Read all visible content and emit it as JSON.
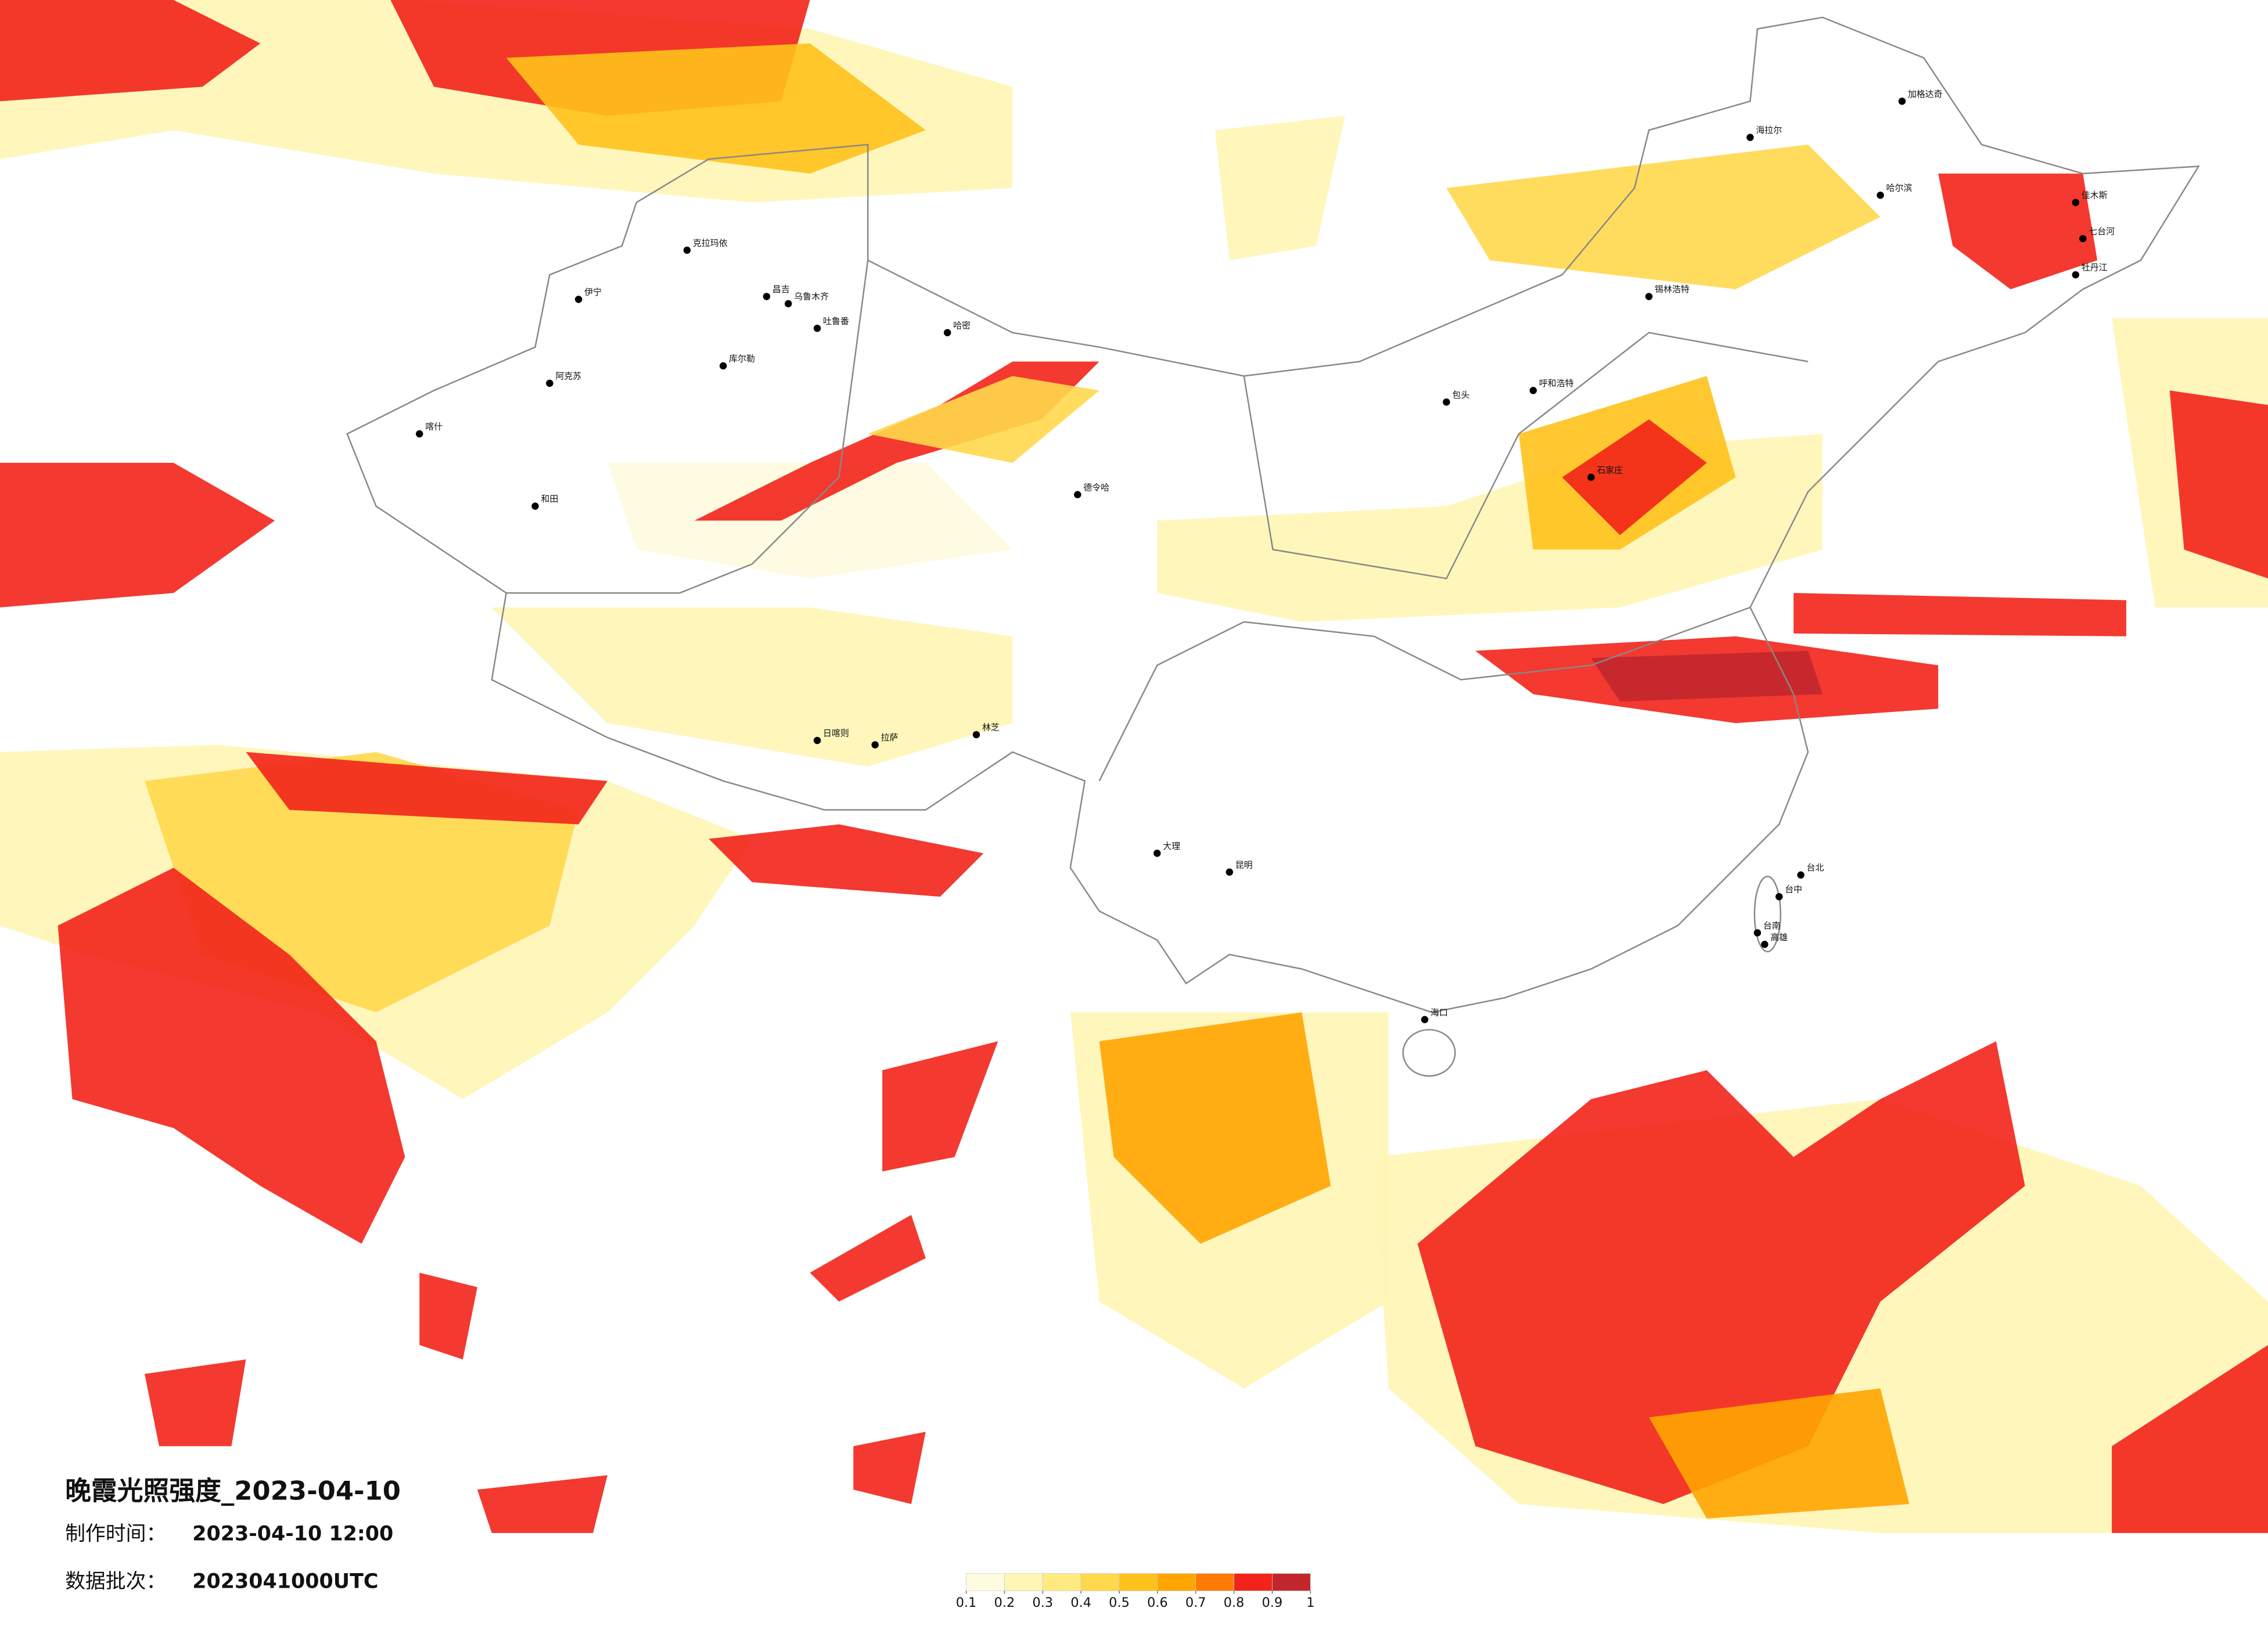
{
  "title": "晚霞光照强度_2023-04-10",
  "made_label": "制作时间：",
  "made_time": "2023-04-10 12:00",
  "batch_label": "数据批次：",
  "batch": "2023041000UTC",
  "legend": {
    "ticks": [
      0.1,
      0.2,
      0.3,
      0.4,
      0.5,
      0.6,
      0.7,
      0.8,
      0.9,
      1
    ],
    "colors": [
      "#fffbe0",
      "#fff5b5",
      "#ffeb80",
      "#ffd84d",
      "#ffc21a",
      "#ffa500",
      "#ff7a00",
      "#f2231a",
      "#c1272d"
    ]
  },
  "cities": [
    "克拉玛依",
    "昌吉",
    "乌鲁木齐",
    "吐鲁番",
    "哈密",
    "伊宁",
    "阿克苏",
    "喀什",
    "和田",
    "库尔勒",
    "日喀则",
    "拉萨",
    "林芝",
    "德令哈",
    "呼和浩特",
    "包头",
    "石家庄",
    "锡林浩特",
    "海拉尔",
    "加格达奇",
    "哈尔滨",
    "佳木斯",
    "七台河",
    "牡丹江",
    "台北",
    "台中",
    "台南",
    "高雄",
    "昆明",
    "大理",
    "海口"
  ]
}
